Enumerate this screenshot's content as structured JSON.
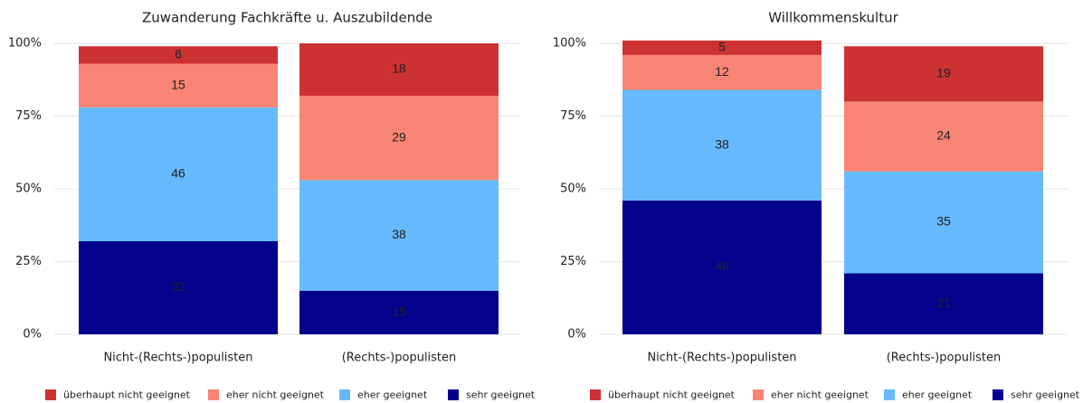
{
  "chart_data": [
    {
      "type": "stacked_bar",
      "title": "Zuwanderung Fachkräfte u. Auszubildende",
      "categories": [
        "Nicht-(Rechts-)populisten",
        "(Rechts-)populisten"
      ],
      "series": [
        {
          "name": "überhaupt nicht geeignet",
          "color": "#cd3232",
          "values": [
            6,
            18
          ]
        },
        {
          "name": "eher nicht geeignet",
          "color": "#f88473",
          "values": [
            15,
            29
          ]
        },
        {
          "name": "eher geeignet",
          "color": "#66b9fd",
          "values": [
            46,
            38
          ]
        },
        {
          "name": "sehr geeignet",
          "color": "#02028c",
          "values": [
            32,
            15
          ]
        }
      ],
      "ylim": [
        0,
        100
      ],
      "yticks": [
        {
          "value": 0,
          "label": "0%"
        },
        {
          "value": 25,
          "label": "25%"
        },
        {
          "value": 50,
          "label": "50%"
        },
        {
          "value": 75,
          "label": "75%"
        },
        {
          "value": 100,
          "label": "100%"
        }
      ],
      "grid": true,
      "legend": "bottom"
    },
    {
      "type": "stacked_bar",
      "title": "Willkommenskultur",
      "categories": [
        "Nicht-(Rechts-)populisten",
        "(Rechts-)populisten"
      ],
      "series": [
        {
          "name": "überhaupt nicht geeignet",
          "color": "#cd3232",
          "values": [
            5,
            19
          ]
        },
        {
          "name": "eher nicht geeignet",
          "color": "#f88473",
          "values": [
            12,
            24
          ]
        },
        {
          "name": "eher geeignet",
          "color": "#66b9fd",
          "values": [
            38,
            35
          ]
        },
        {
          "name": "sehr geeignet",
          "color": "#02028c",
          "values": [
            46,
            21
          ]
        }
      ],
      "ylim": [
        0,
        100
      ],
      "yticks": [
        {
          "value": 0,
          "label": "0%"
        },
        {
          "value": 25,
          "label": "25%"
        },
        {
          "value": 50,
          "label": "50%"
        },
        {
          "value": 75,
          "label": "75%"
        },
        {
          "value": 100,
          "label": "100%"
        }
      ],
      "grid": true,
      "legend": "bottom"
    }
  ]
}
